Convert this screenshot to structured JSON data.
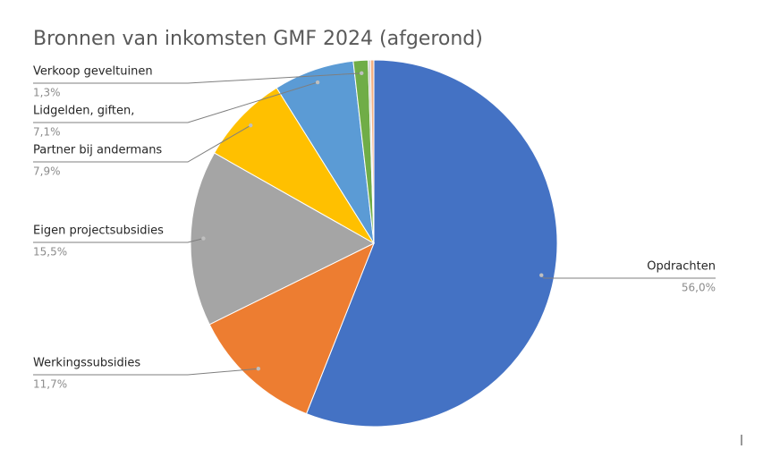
{
  "chart_data": {
    "type": "pie",
    "title": "Bronnen van inkomsten GMF 2024 (afgerond)",
    "categories": [
      "Opdrachten",
      "Werkingssubsidies",
      "Eigen projectsubsidies",
      "Partner bij andermans",
      "Lidgelden, giften,",
      "Verkoop geveltuinen",
      null,
      null
    ],
    "values": [
      56.0,
      11.7,
      15.5,
      7.9,
      7.1,
      1.3,
      0.2,
      0.3
    ],
    "value_labels": [
      "56,0%",
      "11,7%",
      "15,5%",
      "7,9%",
      "7,1%",
      "1,3%",
      null,
      null
    ],
    "colors": [
      "#4472c4",
      "#ed7d31",
      "#a5a5a5",
      "#ffc000",
      "#5b9bd5",
      "#70ad47",
      "#c9c9c9",
      "#f4b183"
    ]
  }
}
